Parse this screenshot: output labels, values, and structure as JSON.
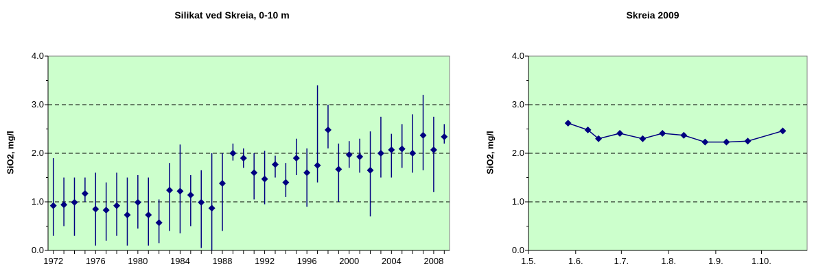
{
  "chart_data": [
    {
      "type": "scatter",
      "title": "Silikat ved Skreia, 0-10 m",
      "ylabel": "SiO2, mg/l",
      "xlabel": "",
      "ylim": [
        0,
        4
      ],
      "yticks": [
        "0.0",
        "1.0",
        "2.0",
        "3.0",
        "4.0"
      ],
      "xlim": [
        1971.5,
        2009.5
      ],
      "xticks": [
        "1972",
        "1976",
        "1980",
        "1984",
        "1988",
        "1992",
        "1996",
        "2000",
        "2004",
        "2008"
      ],
      "grid": "horizontal dashed",
      "background": "#ccffcc",
      "marker_color": "#000080",
      "points": [
        {
          "x": 1972,
          "y": 0.92,
          "lo": 0.3,
          "hi": 1.9
        },
        {
          "x": 1973,
          "y": 0.94,
          "lo": 0.5,
          "hi": 1.5
        },
        {
          "x": 1974,
          "y": 0.99,
          "lo": 0.3,
          "hi": 1.5
        },
        {
          "x": 1975,
          "y": 1.17,
          "lo": 1.0,
          "hi": 1.5
        },
        {
          "x": 1976,
          "y": 0.85,
          "lo": 0.1,
          "hi": 1.6
        },
        {
          "x": 1977,
          "y": 0.83,
          "lo": 0.2,
          "hi": 1.4
        },
        {
          "x": 1978,
          "y": 0.92,
          "lo": 0.3,
          "hi": 1.6
        },
        {
          "x": 1979,
          "y": 0.73,
          "lo": 0.1,
          "hi": 1.5
        },
        {
          "x": 1980,
          "y": 0.99,
          "lo": 0.45,
          "hi": 1.55
        },
        {
          "x": 1981,
          "y": 0.73,
          "lo": 0.1,
          "hi": 1.5
        },
        {
          "x": 1982,
          "y": 0.57,
          "lo": 0.15,
          "hi": 1.05
        },
        {
          "x": 1983,
          "y": 1.24,
          "lo": 0.4,
          "hi": 1.8
        },
        {
          "x": 1984,
          "y": 1.22,
          "lo": 0.35,
          "hi": 2.18
        },
        {
          "x": 1985,
          "y": 1.14,
          "lo": 0.5,
          "hi": 1.55
        },
        {
          "x": 1986,
          "y": 0.99,
          "lo": 0.05,
          "hi": 1.65
        },
        {
          "x": 1987,
          "y": 0.87,
          "lo": 0.0,
          "hi": 2.0
        },
        {
          "x": 1988,
          "y": 1.38,
          "lo": 0.4,
          "hi": 2.0
        },
        {
          "x": 1989,
          "y": 2.0,
          "lo": 1.85,
          "hi": 2.2
        },
        {
          "x": 1990,
          "y": 1.9,
          "lo": 1.7,
          "hi": 2.1
        },
        {
          "x": 1991,
          "y": 1.6,
          "lo": 1.05,
          "hi": 2.0
        },
        {
          "x": 1992,
          "y": 1.47,
          "lo": 0.95,
          "hi": 2.05
        },
        {
          "x": 1993,
          "y": 1.77,
          "lo": 1.5,
          "hi": 1.95
        },
        {
          "x": 1994,
          "y": 1.4,
          "lo": 1.1,
          "hi": 1.8
        },
        {
          "x": 1995,
          "y": 1.9,
          "lo": 1.55,
          "hi": 2.3
        },
        {
          "x": 1996,
          "y": 1.6,
          "lo": 0.9,
          "hi": 2.1
        },
        {
          "x": 1997,
          "y": 1.75,
          "lo": 1.4,
          "hi": 3.4
        },
        {
          "x": 1998,
          "y": 2.48,
          "lo": 2.1,
          "hi": 3.0
        },
        {
          "x": 1999,
          "y": 1.67,
          "lo": 1.0,
          "hi": 2.2
        },
        {
          "x": 2000,
          "y": 1.97,
          "lo": 1.7,
          "hi": 2.25
        },
        {
          "x": 2001,
          "y": 1.93,
          "lo": 1.6,
          "hi": 2.3
        },
        {
          "x": 2002,
          "y": 1.65,
          "lo": 0.7,
          "hi": 2.45
        },
        {
          "x": 2003,
          "y": 2.0,
          "lo": 1.5,
          "hi": 2.75
        },
        {
          "x": 2004,
          "y": 2.07,
          "lo": 1.5,
          "hi": 2.4
        },
        {
          "x": 2005,
          "y": 2.09,
          "lo": 1.7,
          "hi": 2.6
        },
        {
          "x": 2006,
          "y": 2.0,
          "lo": 1.6,
          "hi": 2.8
        },
        {
          "x": 2007,
          "y": 2.37,
          "lo": 1.65,
          "hi": 3.2
        },
        {
          "x": 2008,
          "y": 2.07,
          "lo": 1.2,
          "hi": 2.75
        },
        {
          "x": 2009,
          "y": 2.34,
          "lo": 2.2,
          "hi": 2.6
        }
      ]
    },
    {
      "type": "line",
      "title": "Skreia 2009",
      "ylabel": "SiO2, mg/l",
      "xlabel": "",
      "ylim": [
        0,
        4
      ],
      "yticks": [
        "0.0",
        "1.0",
        "2.0",
        "3.0",
        "4.0"
      ],
      "xlim": [
        "2009-05-01",
        "2009-10-31"
      ],
      "xticks": [
        "1.5.",
        "1.6.",
        "1.7.",
        "1.8.",
        "1.9.",
        "1.10."
      ],
      "grid": "horizontal dashed",
      "background": "#ccffcc",
      "marker_color": "#000080",
      "points": [
        {
          "x": "2009-05-27",
          "y": 2.62
        },
        {
          "x": "2009-06-09",
          "y": 2.48
        },
        {
          "x": "2009-06-16",
          "y": 2.3
        },
        {
          "x": "2009-06-30",
          "y": 2.41
        },
        {
          "x": "2009-07-15",
          "y": 2.3
        },
        {
          "x": "2009-07-28",
          "y": 2.41
        },
        {
          "x": "2009-08-11",
          "y": 2.37
        },
        {
          "x": "2009-08-25",
          "y": 2.23
        },
        {
          "x": "2009-09-08",
          "y": 2.23
        },
        {
          "x": "2009-09-22",
          "y": 2.25
        },
        {
          "x": "2009-10-15",
          "y": 2.46
        }
      ]
    }
  ]
}
